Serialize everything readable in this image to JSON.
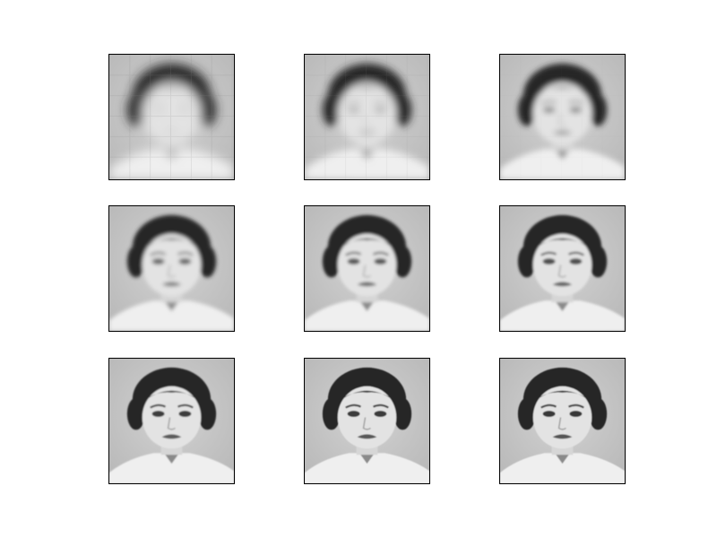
{
  "figure": {
    "panels": [
      {
        "id": "r0c0",
        "blur_level": 1.0
      },
      {
        "id": "r0c1",
        "blur_level": 0.78
      },
      {
        "id": "r0c2",
        "blur_level": 0.55
      },
      {
        "id": "r1c0",
        "blur_level": 0.35
      },
      {
        "id": "r1c1",
        "blur_level": 0.28
      },
      {
        "id": "r1c2",
        "blur_level": 0.22
      },
      {
        "id": "r2c0",
        "blur_level": 0.12
      },
      {
        "id": "r2c1",
        "blur_level": 0.1
      },
      {
        "id": "r2c2",
        "blur_level": 0.08
      }
    ],
    "colors": {
      "background": "#b8b8b8",
      "hair": "#262626",
      "skin": "#e3e3e3",
      "clothes": "#efefef",
      "frame": "#000000"
    }
  }
}
